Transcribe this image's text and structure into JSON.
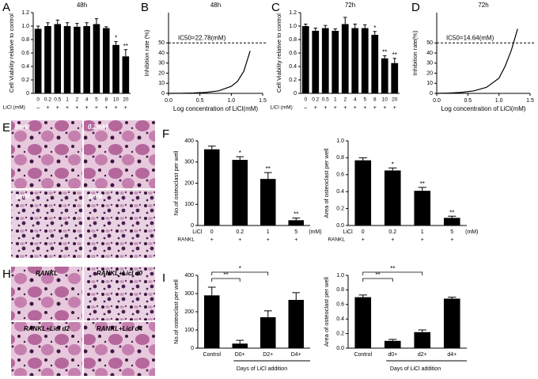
{
  "chart_data": [
    {
      "type": "bar",
      "panel": "A",
      "title": "48h",
      "y_label": "Cell Viability relative to control",
      "categories": [
        "0",
        "0.2",
        "0.5",
        "1",
        "2",
        "4",
        "5",
        "8",
        "10",
        "20"
      ],
      "values": [
        0.96,
        1.0,
        1.03,
        1.0,
        0.99,
        1.0,
        1.03,
        0.97,
        0.72,
        0.55
      ],
      "errors": [
        0.04,
        0.05,
        0.06,
        0.05,
        0.05,
        0.05,
        0.08,
        0.02,
        0.05,
        0.1
      ],
      "annotations": [
        null,
        null,
        null,
        null,
        null,
        null,
        null,
        null,
        "*",
        "**"
      ],
      "rows": [
        {
          "label": "LiCl (mM)",
          "marks": [
            "–",
            "+",
            "+",
            "+",
            "+",
            "+",
            "+",
            "+",
            "+",
            "+"
          ]
        }
      ],
      "ylim": [
        0,
        1.2
      ],
      "yticks": [
        0,
        0.2,
        0.4,
        0.6,
        0.8,
        {
          "value": 1,
          "label": "1.0"
        },
        1.2
      ],
      "color": "#000000"
    },
    {
      "type": "line",
      "panel": "B",
      "title": "48h",
      "y_label": "Inhibition rate (%)",
      "x_label": "Log concentration of LiCl(mM)",
      "x": [
        0,
        0.2,
        0.4,
        0.6,
        0.8,
        1.0,
        1.1,
        1.2,
        1.3
      ],
      "values": [
        0,
        0.1,
        0.4,
        1,
        2.5,
        7,
        12,
        22,
        42
      ],
      "reference_line": 50,
      "reference_label": "IC50=22.78(mM)",
      "xlim": [
        0,
        1.5
      ],
      "xticks": [
        {
          "value": 0,
          "label": "0.0"
        },
        0.5,
        {
          "value": 1,
          "label": "1.0"
        },
        1.5
      ],
      "ylim": [
        0,
        80
      ],
      "yticks": [
        0,
        10,
        20,
        30,
        40,
        50
      ],
      "color": "#000000"
    },
    {
      "type": "bar",
      "panel": "C",
      "title": "72h",
      "y_label": "Cell Viability relative to control",
      "categories": [
        "0",
        "0.2",
        "0.5",
        "1",
        "2",
        "4",
        "5",
        "8",
        "10",
        "20"
      ],
      "values": [
        1.0,
        0.93,
        0.97,
        0.93,
        1.03,
        0.97,
        0.97,
        0.87,
        0.52,
        0.45
      ],
      "errors": [
        0.03,
        0.04,
        0.04,
        0.03,
        0.1,
        0.06,
        0.05,
        0.05,
        0.04,
        0.07
      ],
      "annotations": [
        null,
        null,
        null,
        null,
        null,
        null,
        null,
        "*",
        "**",
        "**"
      ],
      "rows": [
        {
          "label": "LiCl (mM)",
          "marks": [
            "–",
            "+",
            "+",
            "+",
            "+",
            "+",
            "+",
            "+",
            "+",
            "+"
          ]
        }
      ],
      "ylim": [
        0,
        1.2
      ],
      "yticks": [
        0,
        0.2,
        0.4,
        0.6,
        0.8,
        {
          "value": 1,
          "label": "1.0"
        },
        1.2
      ],
      "color": "#000000"
    },
    {
      "type": "line",
      "panel": "D",
      "title": "72h",
      "y_label": "Inhibition rate(%)",
      "x_label": "Log concentration of LiCl(mM)",
      "x": [
        0,
        0.2,
        0.4,
        0.6,
        0.8,
        1.0,
        1.1,
        1.2,
        1.3
      ],
      "values": [
        0,
        0.3,
        1,
        2.5,
        6,
        15,
        27,
        43,
        64
      ],
      "reference_line": 50,
      "reference_label": "IC50=14.64(mM)",
      "xlim": [
        0,
        1.5
      ],
      "xticks": [
        {
          "value": 0,
          "label": "0.0"
        },
        0.5,
        {
          "value": 1,
          "label": "1.0"
        },
        1.5
      ],
      "ylim": [
        0,
        80
      ],
      "yticks": [
        0,
        10,
        20,
        30,
        40,
        50
      ],
      "color": "#000000"
    },
    {
      "type": "bar",
      "panel": "F",
      "y_label": "No.of osteoclast per well",
      "category_label": "LiCl",
      "category_unit": "(mM)",
      "categories": [
        "0",
        "0.2",
        "1",
        "5"
      ],
      "values": [
        360,
        310,
        220,
        25
      ],
      "errors": [
        15,
        15,
        30,
        10
      ],
      "annotations": [
        null,
        "*",
        "**",
        "**"
      ],
      "rows": [
        {
          "label": "RANKL",
          "marks": [
            "+",
            "+",
            "+",
            "+"
          ]
        }
      ],
      "ylim": [
        0,
        400
      ],
      "yticks": [
        0,
        100,
        200,
        300,
        400
      ],
      "color": "#000000"
    },
    {
      "type": "bar",
      "y_label": "Area of osteoclast per well",
      "category_label": "LiCl",
      "category_unit": "(mM)",
      "categories": [
        "0",
        "0.2",
        "1",
        "5"
      ],
      "values": [
        0.77,
        0.65,
        0.41,
        0.09
      ],
      "errors": [
        0.03,
        0.03,
        0.04,
        0.02
      ],
      "annotations": [
        null,
        "*",
        "**",
        "**"
      ],
      "rows": [
        {
          "label": "RANKL",
          "marks": [
            "+",
            "+",
            "+",
            "+"
          ]
        }
      ],
      "ylim": [
        0,
        1
      ],
      "yticks": [
        {
          "value": 0,
          "label": "0.0"
        },
        0.2,
        0.4,
        0.6,
        0.8,
        {
          "value": 1,
          "label": "1.0"
        }
      ],
      "color": "#000000"
    },
    {
      "type": "bar",
      "panel": "I",
      "y_label": "No.of osteoclast per well",
      "x_label": "Days of LiCl addition",
      "categories": [
        "Control",
        "D0+",
        "D2+",
        "D4+"
      ],
      "values": [
        290,
        25,
        170,
        265
      ],
      "errors": [
        45,
        18,
        35,
        40
      ],
      "comparisons": [
        {
          "groups": [
            "Control",
            "D0+"
          ],
          "label": "**"
        },
        {
          "groups": [
            "Control",
            "D2+"
          ],
          "label": "*"
        }
      ],
      "ylim": [
        0,
        400
      ],
      "yticks": [
        0,
        100,
        200,
        300,
        400
      ],
      "color": "#000000"
    },
    {
      "type": "bar",
      "y_label": "Area of osteoclast per well",
      "x_label": "Days of LiCl addition",
      "categories": [
        "Control",
        "d0+",
        "d2+",
        "d4+"
      ],
      "values": [
        0.7,
        0.1,
        0.22,
        0.68
      ],
      "errors": [
        0.03,
        0.02,
        0.03,
        0.02
      ],
      "comparisons": [
        {
          "groups": [
            "Control",
            "d0+"
          ],
          "label": "**"
        },
        {
          "groups": [
            "Control",
            "d2+"
          ],
          "label": "**"
        }
      ],
      "ylim": [
        0,
        1
      ],
      "yticks": [
        {
          "value": 0,
          "label": "0.0"
        },
        0.2,
        0.4,
        0.6,
        0.8,
        {
          "value": 1,
          "label": "1.0"
        }
      ],
      "color": "#000000"
    }
  ],
  "micrographs": [
    {
      "panel": "E",
      "labels": [
        "0mM",
        "0.2mM",
        "1mM",
        "5mM"
      ]
    },
    {
      "panel": "H",
      "labels": [
        "RANKL",
        "RANKL+Licl  d0",
        "RANKL+Licl  d2",
        "RANKL+Licl  d4"
      ]
    }
  ]
}
